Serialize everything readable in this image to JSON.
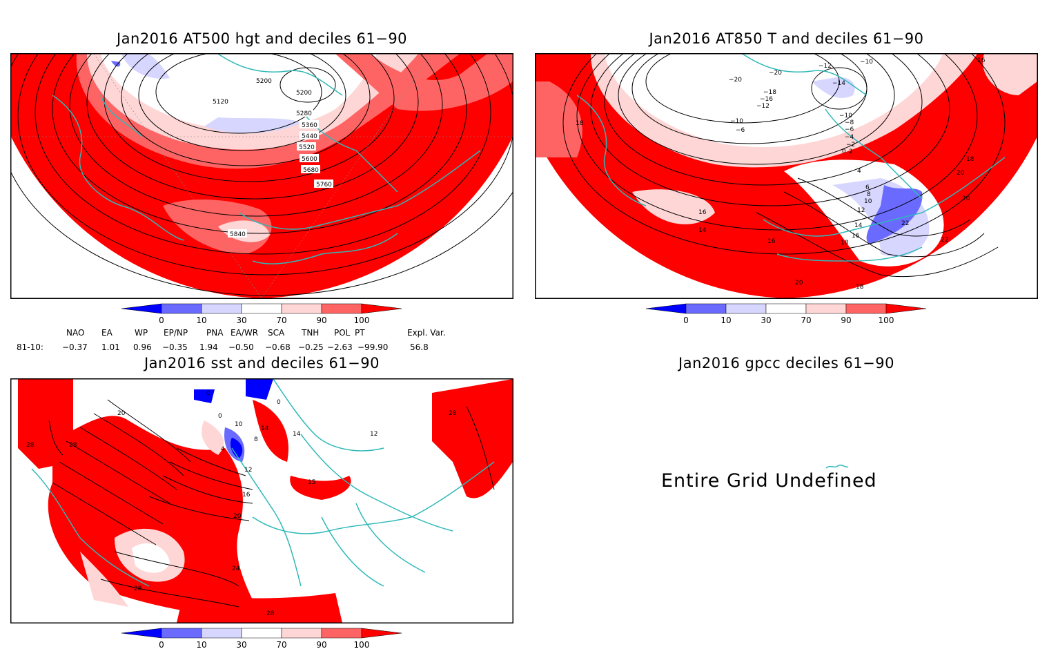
{
  "panels": {
    "z500": {
      "title": "Jan2016 AT500 hgt and deciles 61−90",
      "contour_labels": [
        "5120",
        "5200",
        "5200",
        "5280",
        "5360",
        "5440",
        "5520",
        "5600",
        "5680",
        "5760",
        "5840"
      ]
    },
    "t850": {
      "title": "Jan2016 AT850 T and deciles 61−90",
      "contour_labels": [
        "−20",
        "−20",
        "−12",
        "−10",
        "−14",
        "−10",
        "−18",
        "−16",
        "−12",
        "−10",
        "−6",
        "−8",
        "−6",
        "−4",
        "−2",
        "0",
        "2",
        "4",
        "6",
        "8",
        "10",
        "12",
        "14",
        "16",
        "18",
        "20",
        "22",
        "22",
        "20",
        "18",
        "16",
        "14",
        "16",
        "18",
        "20",
        "18",
        "16",
        "18",
        "20"
      ]
    },
    "sst": {
      "title": "Jan2016 sst and deciles 61−90",
      "contour_labels": [
        "0",
        "0",
        "20",
        "28",
        "28",
        "0",
        "10",
        "14",
        "8",
        "4",
        "12",
        "16",
        "20",
        "24",
        "28",
        "28",
        "14",
        "15",
        "12",
        "28"
      ]
    },
    "gpcc": {
      "title": "Jan2016 gpcc deciles 61−90",
      "message": "Entire Grid Undefined"
    }
  },
  "colorbar": {
    "ticks": [
      "0",
      "10",
      "30",
      "70",
      "90",
      "100"
    ],
    "colors": [
      "#0000ff",
      "#6a6aff",
      "#d6d6ff",
      "#ffffff",
      "#ffd6d6",
      "#ff6464",
      "#ff0000"
    ]
  },
  "indices": {
    "headers": [
      "NAO",
      "EA",
      "WP",
      "EP/NP",
      "PNA",
      "EA/WR",
      "SCA",
      "TNH",
      "POL",
      "PT",
      "Expl. Var."
    ],
    "row_label": "81-10:",
    "values": [
      "−0.37",
      "1.01",
      "0.96",
      "−0.35",
      "1.94",
      "−0.50",
      "−0.68",
      "−0.25",
      "−2.63",
      "−99.90",
      "56.8"
    ]
  },
  "colors": {
    "land_outline": "#2fb8b8",
    "contour": "#000000"
  }
}
